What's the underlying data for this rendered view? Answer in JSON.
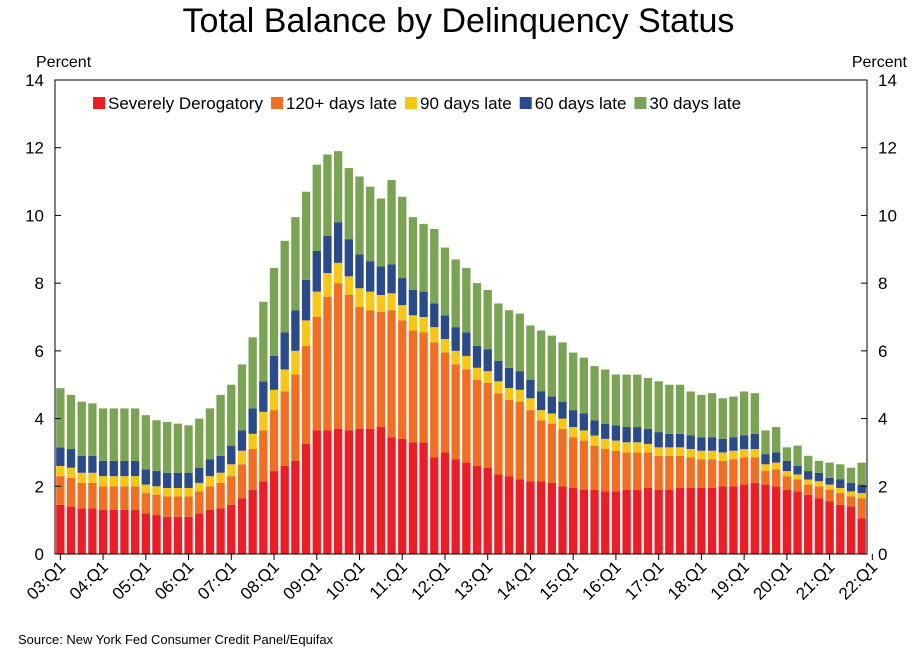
{
  "title": "Total Balance by Delinquency Status",
  "source": "Source: New York Fed Consumer Credit Panel/Equifax",
  "chart_data": {
    "type": "bar",
    "stacked": true,
    "y_unit_label": "Percent",
    "ylim": [
      0,
      14
    ],
    "yticks": [
      0,
      2,
      4,
      6,
      8,
      10,
      12,
      14
    ],
    "x_tick_labels": [
      "03:Q1",
      "04:Q1",
      "05:Q1",
      "06:Q1",
      "07:Q1",
      "08:Q1",
      "09:Q1",
      "10:Q1",
      "11:Q1",
      "12:Q1",
      "13:Q1",
      "14:Q1",
      "15:Q1",
      "16:Q1",
      "17:Q1",
      "18:Q1",
      "19:Q1",
      "20:Q1",
      "21:Q1",
      "22:Q1"
    ],
    "legend_position": "top",
    "grid": false,
    "colors": {
      "Severely Derogatory": "#ee1c24",
      "120+ days late": "#f26f21",
      "90 days late": "#f8c714",
      "60 days late": "#2a4a8c",
      "30 days late": "#7aa353"
    },
    "series": [
      {
        "name": "Severely Derogatory",
        "values": [
          1.45,
          1.4,
          1.35,
          1.35,
          1.3,
          1.3,
          1.3,
          1.3,
          1.2,
          1.15,
          1.1,
          1.1,
          1.1,
          1.2,
          1.3,
          1.35,
          1.45,
          1.65,
          1.9,
          2.15,
          2.45,
          2.6,
          2.75,
          3.25,
          3.65,
          3.65,
          3.7,
          3.65,
          3.7,
          3.7,
          3.75,
          3.45,
          3.4,
          3.3,
          3.3,
          2.85,
          3.0,
          2.8,
          2.7,
          2.6,
          2.55,
          2.35,
          2.3,
          2.2,
          2.15,
          2.15,
          2.1,
          2.0,
          1.95,
          1.9,
          1.9,
          1.85,
          1.85,
          1.9,
          1.9,
          1.95,
          1.9,
          1.9,
          1.95,
          1.95,
          1.95,
          1.95,
          2.0,
          2.0,
          2.05,
          2.1,
          2.05,
          2.0,
          1.9,
          1.85,
          1.75,
          1.65,
          1.55,
          1.45,
          1.4,
          1.05
        ]
      },
      {
        "name": "120+ days late",
        "values": [
          0.85,
          0.85,
          0.75,
          0.75,
          0.7,
          0.7,
          0.7,
          0.7,
          0.6,
          0.6,
          0.6,
          0.6,
          0.6,
          0.65,
          0.7,
          0.75,
          0.85,
          1.0,
          1.2,
          1.5,
          1.8,
          2.2,
          2.55,
          2.9,
          3.35,
          3.95,
          4.3,
          4.0,
          3.6,
          3.5,
          3.4,
          3.75,
          3.5,
          3.3,
          3.25,
          3.4,
          2.95,
          2.8,
          2.75,
          2.55,
          2.5,
          2.4,
          2.25,
          2.3,
          2.1,
          1.8,
          1.75,
          1.7,
          1.5,
          1.45,
          1.3,
          1.25,
          1.2,
          1.1,
          1.1,
          1.05,
          1.0,
          1.0,
          0.95,
          0.9,
          0.85,
          0.85,
          0.75,
          0.8,
          0.8,
          0.75,
          0.4,
          0.5,
          0.4,
          0.35,
          0.3,
          0.35,
          0.35,
          0.35,
          0.3,
          0.6
        ]
      },
      {
        "name": "90 days late",
        "values": [
          0.3,
          0.3,
          0.3,
          0.3,
          0.3,
          0.3,
          0.3,
          0.3,
          0.25,
          0.25,
          0.25,
          0.25,
          0.25,
          0.25,
          0.3,
          0.3,
          0.35,
          0.4,
          0.45,
          0.55,
          0.6,
          0.65,
          0.7,
          0.75,
          0.75,
          0.7,
          0.6,
          0.55,
          0.55,
          0.55,
          0.5,
          0.5,
          0.45,
          0.45,
          0.45,
          0.45,
          0.4,
          0.4,
          0.4,
          0.35,
          0.35,
          0.35,
          0.35,
          0.35,
          0.35,
          0.3,
          0.3,
          0.3,
          0.3,
          0.3,
          0.3,
          0.3,
          0.3,
          0.3,
          0.3,
          0.25,
          0.25,
          0.25,
          0.25,
          0.25,
          0.25,
          0.25,
          0.25,
          0.25,
          0.25,
          0.25,
          0.2,
          0.2,
          0.15,
          0.15,
          0.15,
          0.15,
          0.15,
          0.15,
          0.15,
          0.15
        ]
      },
      {
        "name": "60 days late",
        "values": [
          0.55,
          0.55,
          0.5,
          0.5,
          0.45,
          0.45,
          0.45,
          0.45,
          0.45,
          0.45,
          0.45,
          0.45,
          0.45,
          0.45,
          0.5,
          0.5,
          0.55,
          0.6,
          0.75,
          0.9,
          1.0,
          1.1,
          1.2,
          1.2,
          1.2,
          1.1,
          1.2,
          1.1,
          1.0,
          0.9,
          0.85,
          0.85,
          0.8,
          0.75,
          0.75,
          0.7,
          0.7,
          0.7,
          0.7,
          0.65,
          0.65,
          0.6,
          0.6,
          0.55,
          0.55,
          0.55,
          0.5,
          0.5,
          0.5,
          0.5,
          0.45,
          0.45,
          0.45,
          0.45,
          0.45,
          0.45,
          0.45,
          0.4,
          0.4,
          0.4,
          0.4,
          0.4,
          0.4,
          0.4,
          0.4,
          0.45,
          0.3,
          0.3,
          0.3,
          0.25,
          0.25,
          0.25,
          0.2,
          0.25,
          0.25,
          0.25
        ]
      },
      {
        "name": "30 days late",
        "values": [
          1.75,
          1.6,
          1.6,
          1.55,
          1.55,
          1.55,
          1.55,
          1.55,
          1.6,
          1.5,
          1.5,
          1.45,
          1.4,
          1.45,
          1.5,
          1.8,
          1.8,
          1.95,
          2.1,
          2.35,
          2.6,
          2.7,
          2.75,
          2.6,
          2.55,
          2.4,
          2.1,
          2.1,
          2.3,
          2.2,
          2.0,
          2.5,
          2.4,
          2.15,
          2.0,
          2.2,
          2.0,
          2.0,
          1.9,
          1.85,
          1.75,
          1.7,
          1.7,
          1.7,
          1.6,
          1.8,
          1.8,
          1.75,
          1.7,
          1.65,
          1.6,
          1.6,
          1.5,
          1.55,
          1.55,
          1.5,
          1.5,
          1.45,
          1.45,
          1.3,
          1.25,
          1.3,
          1.2,
          1.2,
          1.3,
          1.2,
          0.7,
          0.75,
          0.4,
          0.6,
          0.45,
          0.35,
          0.45,
          0.45,
          0.45,
          0.65
        ]
      }
    ]
  }
}
